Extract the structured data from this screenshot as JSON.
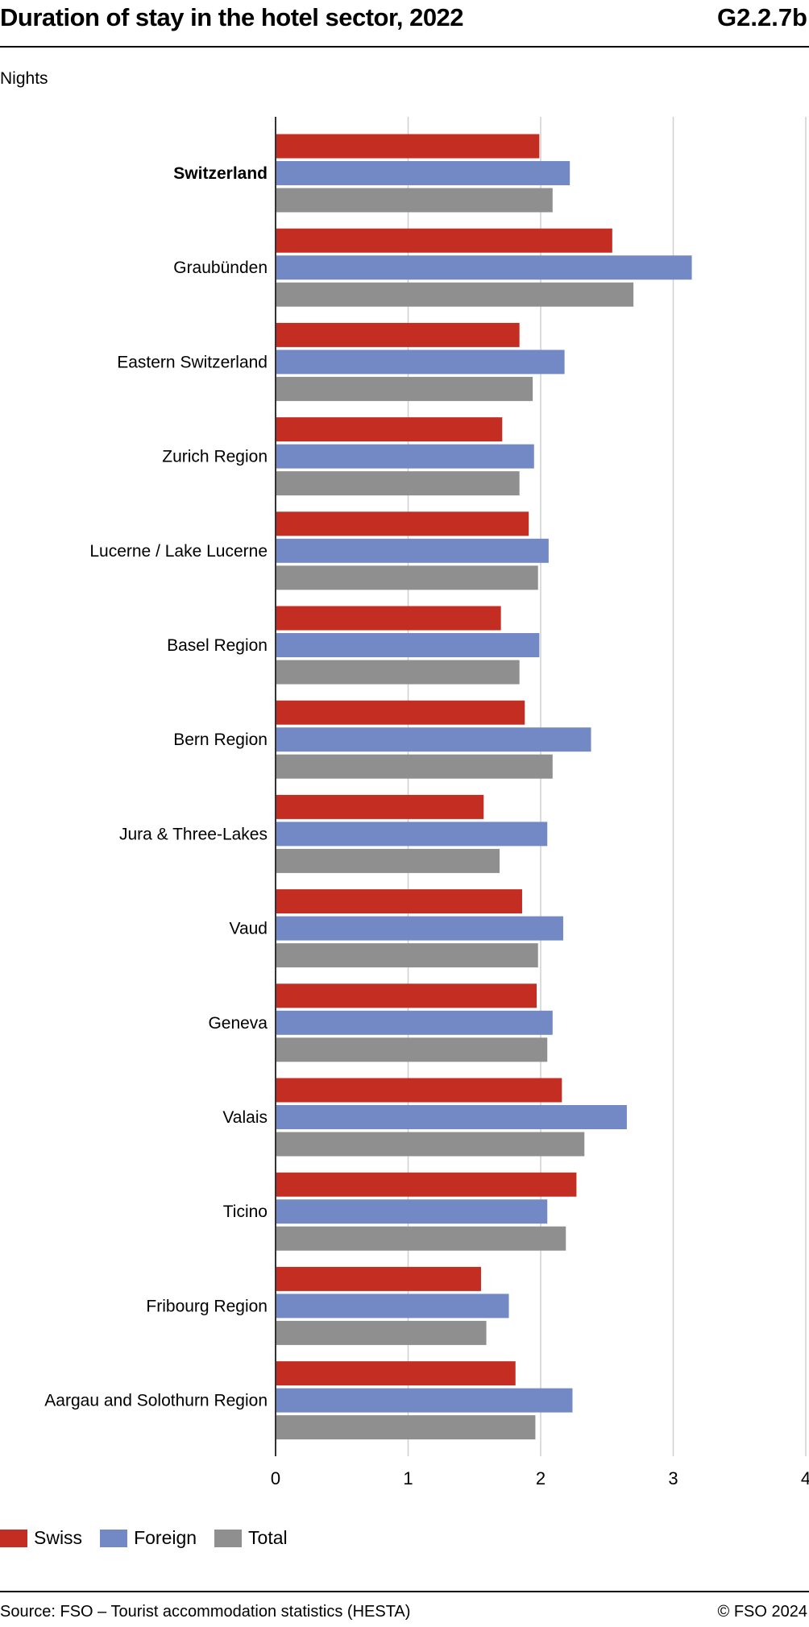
{
  "header": {
    "title": "Duration of stay in the hotel sector, 2022",
    "code": "G2.2.7b"
  },
  "footer": {
    "source": "Source: FSO – Tourist accommodation statistics (HESTA)",
    "copyright": "© FSO 2024"
  },
  "colors": {
    "Swiss": "#c42d22",
    "Foreign": "#7389c6",
    "Total": "#8f8f8f"
  },
  "chart_data": {
    "type": "bar",
    "orientation": "horizontal",
    "title": "Duration of stay in the hotel sector, 2022",
    "xlabel": "",
    "ylabel": "Nights",
    "xlim": [
      0,
      4
    ],
    "xticks": [
      "0",
      "1",
      "2",
      "3",
      "4"
    ],
    "grid": true,
    "legend_position": "bottom-left",
    "bold_categories": [
      "Switzerland"
    ],
    "categories": [
      "Switzerland",
      "Graubünden",
      "Eastern Switzerland",
      "Zurich Region",
      "Lucerne / Lake Lucerne",
      "Basel Region",
      "Bern Region",
      "Jura & Three-Lakes",
      "Vaud",
      "Geneva",
      "Valais",
      "Ticino",
      "Fribourg Region",
      "Aargau and Solothurn Region"
    ],
    "series": [
      {
        "name": "Swiss",
        "values": [
          1.99,
          2.54,
          1.84,
          1.71,
          1.91,
          1.7,
          1.88,
          1.57,
          1.86,
          1.97,
          2.16,
          2.27,
          1.55,
          1.81
        ]
      },
      {
        "name": "Foreign",
        "values": [
          2.22,
          3.14,
          2.18,
          1.95,
          2.06,
          1.99,
          2.38,
          2.05,
          2.17,
          2.09,
          2.65,
          2.05,
          1.76,
          2.24
        ]
      },
      {
        "name": "Total",
        "values": [
          2.09,
          2.7,
          1.94,
          1.84,
          1.98,
          1.84,
          2.09,
          1.69,
          1.98,
          2.05,
          2.33,
          2.19,
          1.59,
          1.96
        ]
      }
    ]
  }
}
